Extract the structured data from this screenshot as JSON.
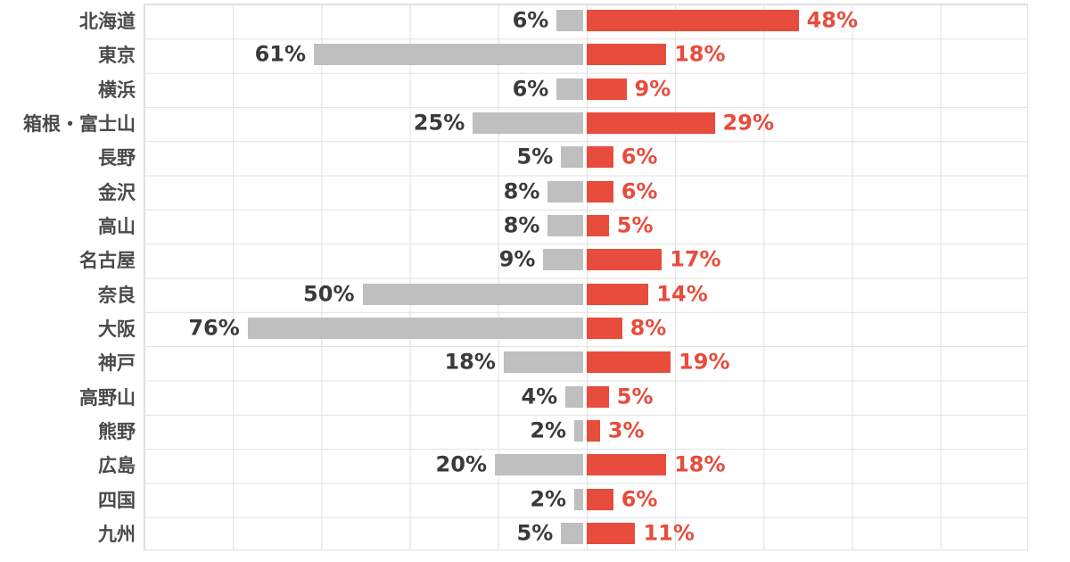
{
  "chart_data": {
    "type": "bar",
    "variant": "horizontal-diverging",
    "title": "",
    "xlabel": "",
    "ylabel": "",
    "value_suffix": "%",
    "xlim": [
      -100,
      100
    ],
    "grid": true,
    "grid_step_pct": 20,
    "gridline_color": "#e0e0e0",
    "background_color": "#ffffff",
    "category_label_color": "#4a4a4a",
    "categories": [
      "北海道",
      "東京",
      "横浜",
      "箱根・富士山",
      "長野",
      "金沢",
      "高山",
      "名古屋",
      "奈良",
      "大阪",
      "神戸",
      "高野山",
      "熊野",
      "広島",
      "四国",
      "九州"
    ],
    "series": [
      {
        "name": "left-gray-series",
        "direction": "left",
        "color": "#bfbfbf",
        "label_color": "#3a3a3a",
        "values": [
          6,
          61,
          6,
          25,
          5,
          8,
          8,
          9,
          50,
          76,
          18,
          4,
          2,
          20,
          2,
          5
        ]
      },
      {
        "name": "right-red-series",
        "direction": "right",
        "color": "#e74c3c",
        "label_color": "#e74c3c",
        "values": [
          48,
          18,
          9,
          29,
          6,
          6,
          5,
          17,
          14,
          8,
          19,
          5,
          3,
          18,
          6,
          11
        ]
      }
    ],
    "legend": "none"
  }
}
